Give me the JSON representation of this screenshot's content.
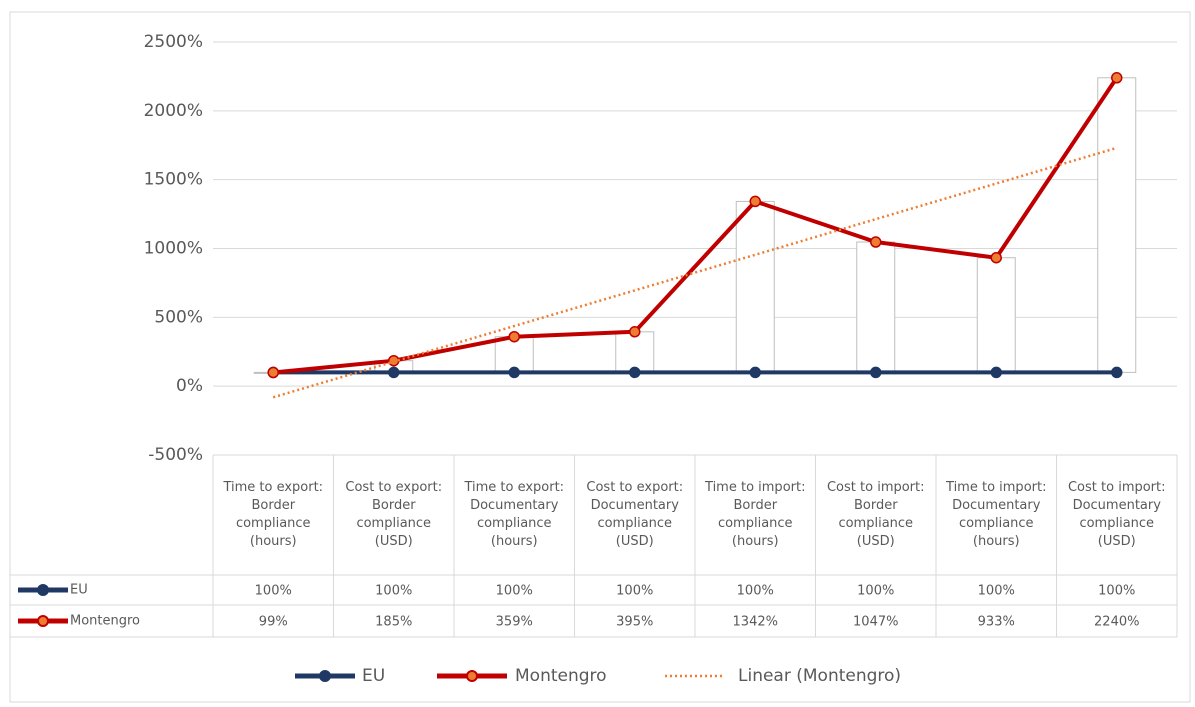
{
  "chart_data": {
    "type": "line",
    "categories": [
      "Time to export: Border compliance (hours)",
      "Cost to export: Border compliance (USD)",
      "Time to export: Documentary compliance (hours)",
      "Cost to export: Documentary compliance (USD)",
      "Time to import: Border compliance (hours)",
      "Cost to import: Border compliance (USD)",
      "Time to import: Documentary compliance (hours)",
      "Cost to import: Documentary compliance (USD)"
    ],
    "series": [
      {
        "name": "EU",
        "color": "#1f3864",
        "values": [
          100,
          100,
          100,
          100,
          100,
          100,
          100,
          100
        ],
        "value_labels": [
          "100%",
          "100%",
          "100%",
          "100%",
          "100%",
          "100%",
          "100%",
          "100%"
        ]
      },
      {
        "name": "Montengro",
        "color": "#c00000",
        "marker_color": "#ed7d31",
        "values": [
          99,
          185,
          359,
          395,
          1342,
          1047,
          933,
          2240
        ],
        "value_labels": [
          "99%",
          "185%",
          "359%",
          "395%",
          "1342%",
          "1047%",
          "933%",
          "2240%"
        ]
      }
    ],
    "trendline": {
      "name": "Linear (Montengro)",
      "color": "#ed7d31"
    },
    "ylim": [
      -500,
      2500
    ],
    "yticks": [
      {
        "value": -500,
        "label": "-500%"
      },
      {
        "value": 0,
        "label": "0%"
      },
      {
        "value": 500,
        "label": "500%"
      },
      {
        "value": 1000,
        "label": "1000%"
      },
      {
        "value": 1500,
        "label": "1500%"
      },
      {
        "value": 2000,
        "label": "2000%"
      },
      {
        "value": 2500,
        "label": "2500%"
      }
    ],
    "grid": true,
    "legend": "bottom"
  }
}
